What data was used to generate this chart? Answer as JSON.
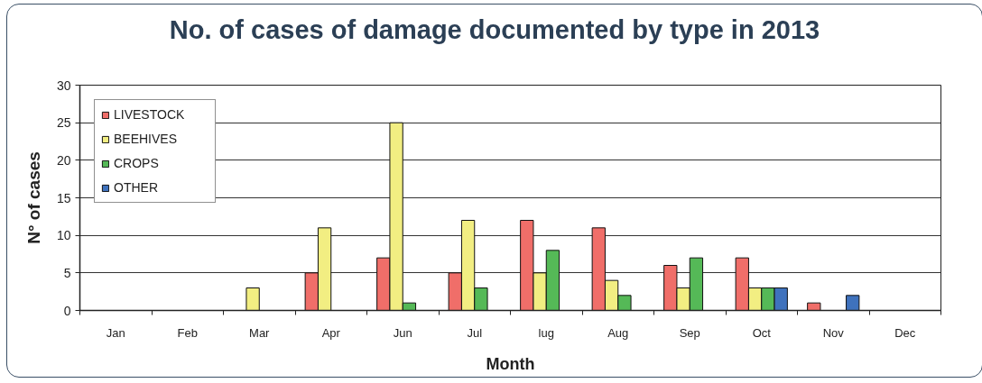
{
  "chart_data": {
    "type": "bar",
    "title": "No. of cases of damage documented by type in 2013",
    "xlabel": "Month",
    "ylabel": "N° of cases",
    "categories": [
      "Jan",
      "Feb",
      "Mar",
      "Apr",
      "Jun",
      "Jul",
      "lug",
      "Aug",
      "Sep",
      "Oct",
      "Nov",
      "Dec"
    ],
    "series": [
      {
        "name": "LIVESTOCK",
        "color": "#f06e69",
        "values": [
          0,
          0,
          0,
          5,
          7,
          5,
          12,
          11,
          6,
          7,
          1,
          0
        ]
      },
      {
        "name": "BEEHIVES",
        "color": "#f2ee82",
        "values": [
          0,
          0,
          3,
          11,
          25,
          12,
          5,
          4,
          3,
          3,
          0,
          0
        ]
      },
      {
        "name": "CROPS",
        "color": "#55b957",
        "values": [
          0,
          0,
          0,
          0,
          1,
          3,
          8,
          2,
          7,
          3,
          0,
          0
        ]
      },
      {
        "name": "OTHER",
        "color": "#3f72bd",
        "values": [
          0,
          0,
          0,
          0,
          0,
          0,
          0,
          0,
          0,
          3,
          2,
          0
        ]
      }
    ],
    "ylim": [
      0,
      30
    ],
    "yticks": [
      0,
      5,
      10,
      15,
      20,
      25,
      30
    ],
    "grid": "y",
    "legend": "top left"
  }
}
